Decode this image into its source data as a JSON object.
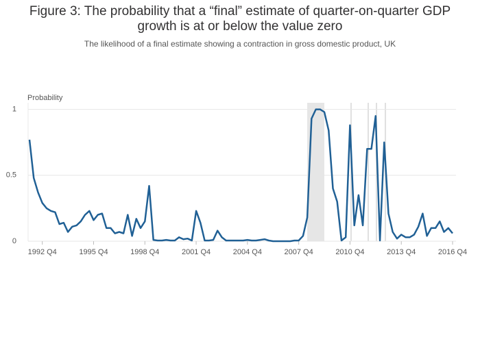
{
  "chart_data": {
    "type": "line",
    "title": "Figure 3: The probability that a “final” estimate of quarter-on-quarter GDP growth is at or below the value zero",
    "subtitle": "The likelihood of a final estimate showing a contraction in gross domestic product, UK",
    "y_label": "Probability",
    "categories": [
      null,
      null,
      null,
      "1992 Q4",
      null,
      null,
      null,
      null,
      null,
      null,
      null,
      null,
      null,
      null,
      null,
      "1995 Q4",
      null,
      null,
      null,
      null,
      null,
      null,
      null,
      null,
      null,
      null,
      null,
      "1998 Q4",
      null,
      null,
      null,
      null,
      null,
      null,
      null,
      null,
      null,
      null,
      null,
      "2001 Q4",
      null,
      null,
      null,
      null,
      null,
      null,
      null,
      null,
      null,
      null,
      null,
      "2004 Q4",
      null,
      null,
      null,
      null,
      null,
      null,
      null,
      null,
      null,
      null,
      null,
      "2007 Q4",
      null,
      null,
      null,
      null,
      null,
      null,
      null,
      null,
      null,
      null,
      null,
      "2010 Q4",
      null,
      null,
      null,
      null,
      null,
      null,
      null,
      null,
      null,
      null,
      null,
      "2013 Q4",
      null,
      null,
      null,
      null,
      null,
      null,
      null,
      null,
      null,
      null,
      null,
      "2016 Q4"
    ],
    "series": [
      {
        "name": "Probability",
        "color": "#206095",
        "values": [
          0.77,
          0.48,
          0.37,
          0.29,
          0.25,
          0.23,
          0.22,
          0.13,
          0.14,
          0.07,
          0.11,
          0.12,
          0.15,
          0.2,
          0.23,
          0.16,
          0.2,
          0.21,
          0.1,
          0.1,
          0.06,
          0.07,
          0.06,
          0.2,
          0.04,
          0.17,
          0.1,
          0.15,
          0.42,
          0.01,
          0.005,
          0.005,
          0.01,
          0.005,
          0.005,
          0.03,
          0.015,
          0.02,
          0.005,
          0.23,
          0.14,
          0.005,
          0.005,
          0.01,
          0.08,
          0.03,
          0.005,
          0.005,
          0.005,
          0.005,
          0.005,
          0.01,
          0.005,
          0.005,
          0.01,
          0.015,
          0.005,
          0,
          0,
          0,
          0,
          0,
          0.005,
          0.005,
          0.04,
          0.18,
          0.93,
          1,
          1,
          0.98,
          0.84,
          0.4,
          0.3,
          0.005,
          0.03,
          0.88,
          0.12,
          0.35,
          0.12,
          0.7,
          0.7,
          0.95,
          0.005,
          0.75,
          0.21,
          0.07,
          0.02,
          0.05,
          0.03,
          0.03,
          0.05,
          0.11,
          0.21,
          0.04,
          0.1,
          0.1,
          0.15,
          0.07,
          0.1,
          0.06
        ]
      }
    ],
    "ylim": [
      0,
      1.05
    ],
    "yticks": [
      0,
      0.5,
      1
    ],
    "grid": true
  }
}
